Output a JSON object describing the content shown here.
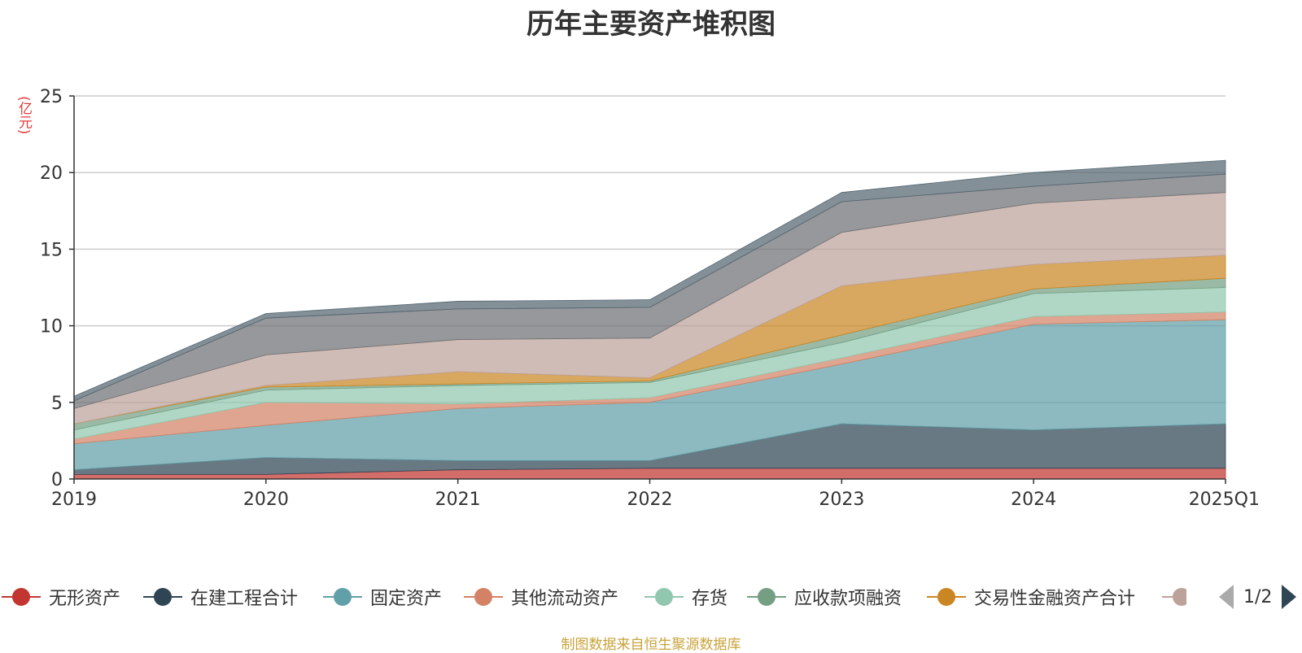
{
  "chart_data": {
    "type": "area",
    "stacked": true,
    "title": "历年主要资产堆积图",
    "ylabel": "(亿元)",
    "xlabel": "",
    "categories": [
      "2019",
      "2020",
      "2021",
      "2022",
      "2023",
      "2024",
      "2025Q1"
    ],
    "ylim": [
      0,
      25
    ],
    "yticks": [
      0,
      5,
      10,
      15,
      20,
      25
    ],
    "grid": true,
    "legend_position": "bottom",
    "series": [
      {
        "name": "无形资产",
        "color": "#c23531",
        "values": [
          0.3,
          0.3,
          0.6,
          0.7,
          0.7,
          0.7,
          0.7
        ]
      },
      {
        "name": "在建工程合计",
        "color": "#2f4554",
        "values": [
          0.3,
          1.1,
          0.6,
          0.5,
          2.9,
          2.5,
          2.9
        ]
      },
      {
        "name": "固定资产",
        "color": "#61a0a8",
        "values": [
          1.7,
          2.1,
          3.4,
          3.8,
          3.9,
          6.9,
          6.8
        ]
      },
      {
        "name": "其他流动资产",
        "color": "#d48265",
        "values": [
          0.3,
          1.5,
          0.3,
          0.3,
          0.4,
          0.5,
          0.5
        ]
      },
      {
        "name": "存货",
        "color": "#91c7ae",
        "values": [
          0.6,
          0.8,
          1.2,
          1.0,
          1.0,
          1.5,
          1.6
        ]
      },
      {
        "name": "应收款项融资",
        "color": "#749f83",
        "values": [
          0.4,
          0.2,
          0.1,
          0.1,
          0.5,
          0.3,
          0.6
        ]
      },
      {
        "name": "交易性金融资产合计",
        "color": "#ca8622",
        "values": [
          0.0,
          0.1,
          0.8,
          0.2,
          3.2,
          1.6,
          1.5
        ]
      },
      {
        "name": "",
        "color": "#bda29a",
        "values": [
          1.0,
          2.0,
          2.1,
          2.6,
          3.5,
          4.0,
          4.1
        ]
      },
      {
        "name": "",
        "color": "#6e7074",
        "values": [
          0.5,
          2.4,
          2.0,
          2.0,
          2.0,
          1.1,
          1.2
        ]
      },
      {
        "name": "",
        "color": "#546570",
        "values": [
          0.3,
          0.3,
          0.5,
          0.5,
          0.6,
          0.9,
          0.9
        ]
      }
    ]
  },
  "legend": {
    "items": [
      {
        "label": "无形资产",
        "color": "#c23531"
      },
      {
        "label": "在建工程合计",
        "color": "#2f4554"
      },
      {
        "label": "固定资产",
        "color": "#61a0a8"
      },
      {
        "label": "其他流动资产",
        "color": "#d48265"
      },
      {
        "label": "存货",
        "color": "#91c7ae"
      },
      {
        "label": "应收款项融资",
        "color": "#749f83"
      },
      {
        "label": "交易性金融资产合计",
        "color": "#ca8622"
      },
      {
        "label": "",
        "color": "#bda29a"
      }
    ],
    "page": "1/2"
  },
  "source": "制图数据来自恒生聚源数据库"
}
